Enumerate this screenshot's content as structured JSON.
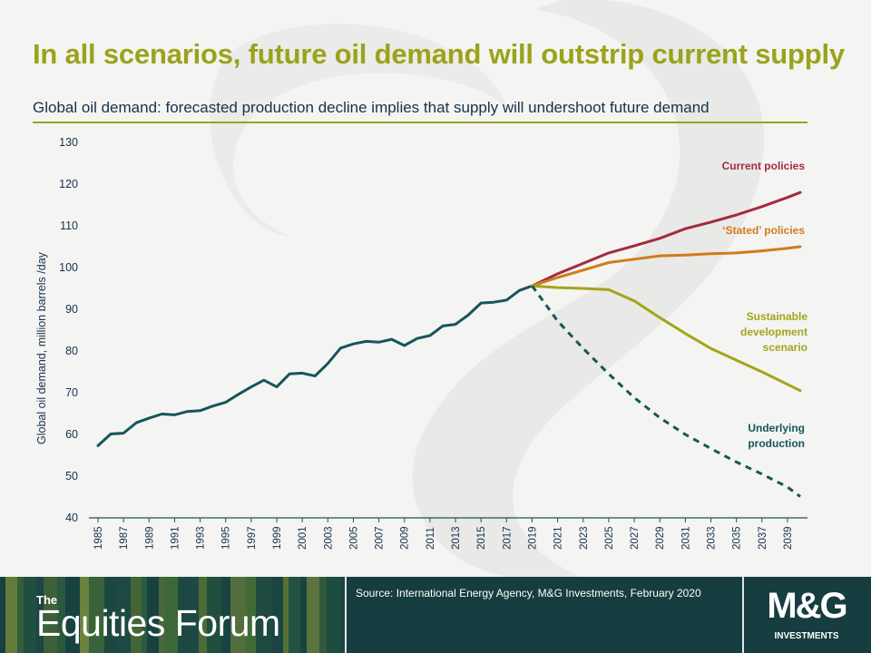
{
  "slide": {
    "title": "In all scenarios, future oil demand will outstrip current supply",
    "subtitle": "Global oil demand: forecasted production decline implies that supply will undershoot future demand"
  },
  "footer": {
    "forum_the": "The",
    "forum_name": "Equities Forum",
    "source": "Source: International Energy Agency, M&G Investments, February 2020",
    "logo_text": "M&G",
    "logo_sub": "INVESTMENTS"
  },
  "colors": {
    "title": "#9aa31a",
    "historical": "#17565a",
    "current_policies": "#a22c3c",
    "stated_policies": "#d07c1a",
    "sustainable": "#a3a51a",
    "underlying": "#17565a",
    "footer_bg": "#163d3f"
  },
  "chart_data": {
    "type": "line",
    "xlabel": "",
    "ylabel": "Global oil demand, million barrels /day",
    "ylim": [
      40,
      130
    ],
    "yticks": [
      40,
      50,
      60,
      70,
      80,
      90,
      100,
      110,
      120,
      130
    ],
    "xlim": [
      1985,
      2040
    ],
    "xticks": [
      "1985",
      "1987",
      "1989",
      "1991",
      "1993",
      "1995",
      "1997",
      "1999",
      "2001",
      "2003",
      "2005",
      "2007",
      "2009",
      "2011",
      "2013",
      "2015",
      "2017",
      "2019",
      "2021",
      "2023",
      "2025",
      "2027",
      "2029",
      "2031",
      "2033",
      "2035",
      "2037",
      "2039"
    ],
    "grid": false,
    "series": [
      {
        "name": "",
        "style": "solid",
        "color": "#17565a",
        "x": [
          1985,
          1986,
          1987,
          1988,
          1989,
          1990,
          1991,
          1992,
          1993,
          1994,
          1995,
          1996,
          1997,
          1998,
          1999,
          2000,
          2001,
          2002,
          2003,
          2004,
          2005,
          2006,
          2007,
          2008,
          2009,
          2010,
          2011,
          2012,
          2013,
          2014,
          2015,
          2016,
          2017,
          2018,
          2019
        ],
        "y": [
          57.3,
          60.1,
          60.3,
          62.8,
          63.9,
          64.9,
          64.7,
          65.5,
          65.7,
          66.8,
          67.7,
          69.6,
          71.4,
          73.0,
          71.4,
          74.5,
          74.7,
          74.0,
          77.0,
          80.7,
          81.7,
          82.3,
          82.1,
          82.8,
          81.3,
          83.0,
          83.7,
          86.0,
          86.4,
          88.6,
          91.5,
          91.7,
          92.2,
          94.5,
          95.6
        ]
      },
      {
        "name": "Current policies",
        "style": "solid",
        "color": "#a22c3c",
        "x": [
          2019,
          2021,
          2023,
          2025,
          2027,
          2029,
          2031,
          2033,
          2035,
          2037,
          2039,
          2040
        ],
        "y": [
          95.6,
          98.5,
          101.0,
          103.5,
          105.2,
          107.0,
          109.3,
          110.9,
          112.6,
          114.6,
          116.8,
          118.0
        ]
      },
      {
        "name": "‘Stated’ policies",
        "style": "solid",
        "color": "#d07c1a",
        "x": [
          2019,
          2021,
          2023,
          2025,
          2027,
          2029,
          2031,
          2033,
          2035,
          2037,
          2039,
          2040
        ],
        "y": [
          95.6,
          97.6,
          99.4,
          101.2,
          102.0,
          102.8,
          103.0,
          103.3,
          103.5,
          104.0,
          104.6,
          105.0
        ]
      },
      {
        "name": "Sustainable development scenario",
        "style": "solid",
        "color": "#a3a51a",
        "x": [
          2019,
          2021,
          2023,
          2025,
          2027,
          2029,
          2031,
          2033,
          2035,
          2037,
          2040
        ],
        "y": [
          95.6,
          95.2,
          95.0,
          94.7,
          92.0,
          88.0,
          84.2,
          80.6,
          77.8,
          75.0,
          70.5
        ]
      },
      {
        "name": "Underlying production",
        "style": "dashed",
        "color": "#17565a",
        "x": [
          2019,
          2021,
          2023,
          2025,
          2027,
          2029,
          2031,
          2033,
          2035,
          2037,
          2039,
          2040
        ],
        "y": [
          95.6,
          87.2,
          80.6,
          74.5,
          68.8,
          64.0,
          60.0,
          56.6,
          53.4,
          50.5,
          47.4,
          45.1
        ]
      }
    ]
  }
}
